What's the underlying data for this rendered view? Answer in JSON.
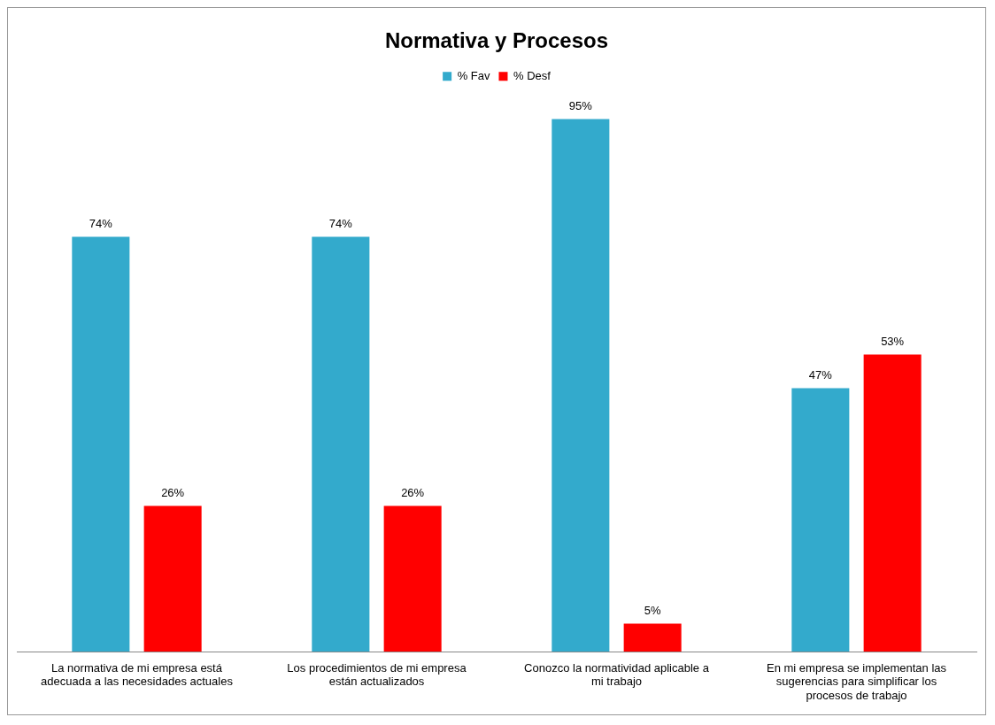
{
  "chart_data": {
    "type": "bar",
    "title": "Normativa y Procesos",
    "categories": [
      "La normativa de mi empresa está adecuada a las necesidades actuales",
      "Los procedimientos de mi empresa están actualizados",
      "Conozco la normatividad aplicable a mi trabajo",
      "En mi empresa se implementan las sugerencias para simplificar los procesos de trabajo"
    ],
    "series": [
      {
        "name": "% Fav",
        "color": "#33aacc",
        "values": [
          74,
          74,
          95,
          47
        ],
        "value_labels": [
          "74%",
          "74%",
          "95%",
          "47%"
        ]
      },
      {
        "name": "% Desf",
        "color": "#ff0000",
        "values": [
          26,
          26,
          5,
          53
        ],
        "value_labels": [
          "26%",
          "26%",
          "5%",
          "53%"
        ]
      }
    ],
    "legend": "top",
    "grid": false
  }
}
